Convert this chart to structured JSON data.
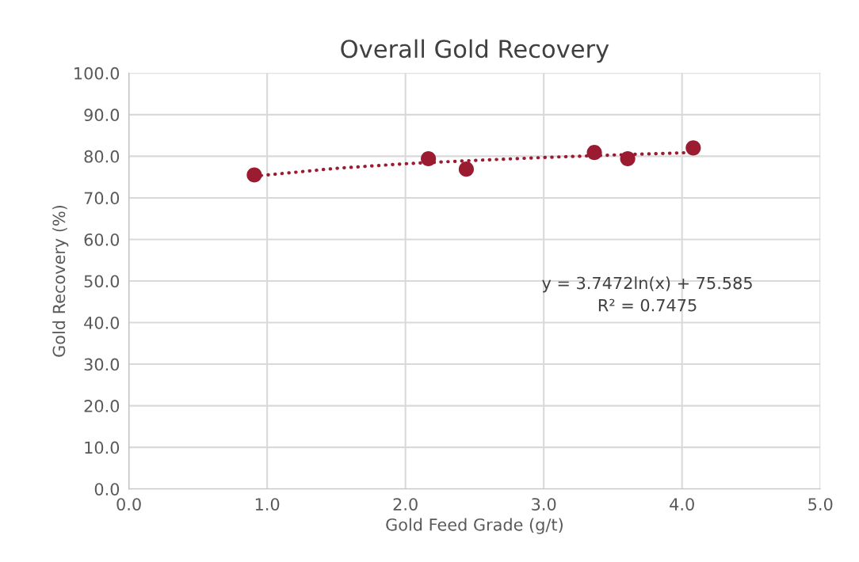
{
  "chart_data": {
    "type": "scatter",
    "title": "Overall Gold Recovery",
    "xlabel": "Gold Feed Grade (g/t)",
    "ylabel": "Gold Recovery (%)",
    "series": [
      {
        "color": "#9b1b30",
        "marker": "circle",
        "x": [
          0.907,
          2.166,
          2.44,
          3.366,
          3.607,
          4.081
        ],
        "values": [
          75.5,
          79.4,
          76.9,
          80.9,
          79.4,
          82.0
        ]
      },
      {
        "type": "line",
        "color": "#9b1b30",
        "line_style": "dotted",
        "marker": "none",
        "x": [
          0.907,
          1.5,
          2.0,
          2.5,
          3.0,
          3.5,
          4.081
        ],
        "values": [
          75.2,
          77.1,
          78.2,
          79.0,
          79.7,
          80.3,
          80.9
        ]
      }
    ],
    "annotations": [
      "y = 3.7472ln(x) + 75.585\nR² = 0.7475"
    ],
    "xlim": [
      0,
      5
    ],
    "xticks": [
      {
        "value": 0,
        "label": "0.0"
      },
      {
        "value": 1,
        "label": "1.0"
      },
      {
        "value": 2,
        "label": "2.0"
      },
      {
        "value": 3,
        "label": "3.0"
      },
      {
        "value": 4,
        "label": "4.0"
      },
      {
        "value": 5,
        "label": "5.0"
      }
    ],
    "ylim": [
      0,
      100
    ],
    "yticks": [
      {
        "value": 0,
        "label": "0.0"
      },
      {
        "value": 10,
        "label": "10.0"
      },
      {
        "value": 20,
        "label": "20.0"
      },
      {
        "value": 30,
        "label": "30.0"
      },
      {
        "value": 40,
        "label": "40.0"
      },
      {
        "value": 50,
        "label": "50.0"
      },
      {
        "value": 60,
        "label": "60.0"
      },
      {
        "value": 70,
        "label": "70.0"
      },
      {
        "value": 80,
        "label": "80.0"
      },
      {
        "value": 90,
        "label": "90.0"
      },
      {
        "value": 100,
        "label": "100.0"
      }
    ],
    "grid": true
  }
}
